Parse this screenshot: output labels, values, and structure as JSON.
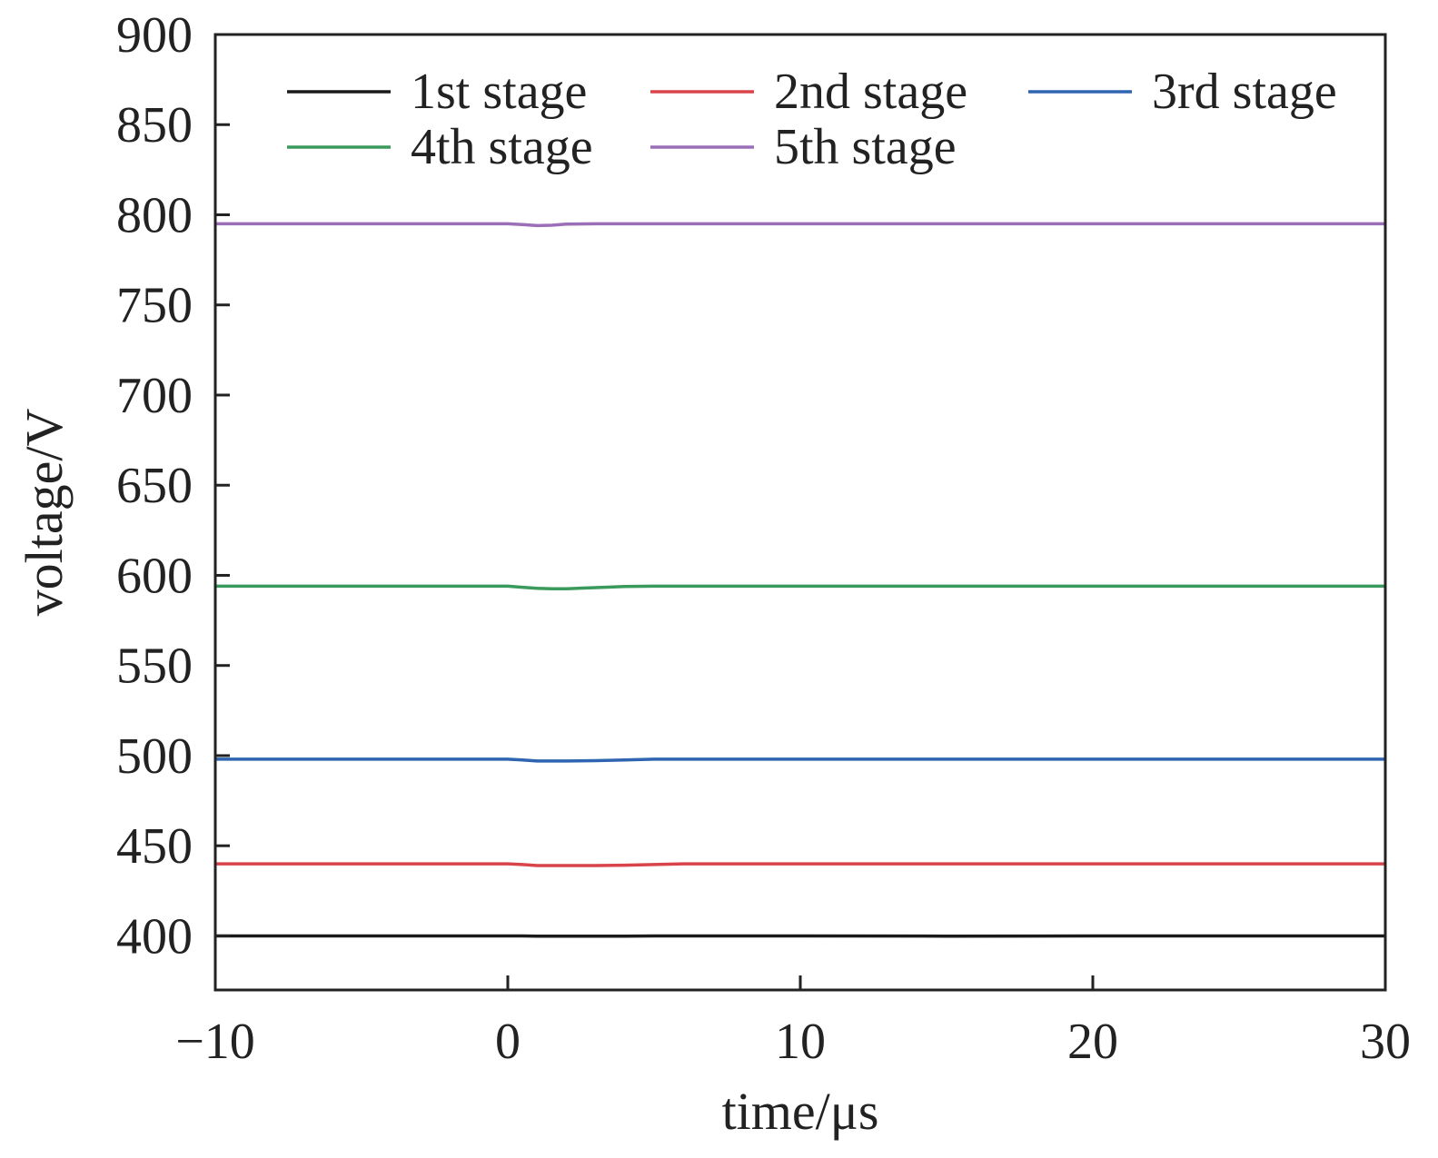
{
  "chart_data": {
    "type": "line",
    "title": "",
    "xlabel": "time/μs",
    "ylabel": "voltage/V",
    "xlim": [
      -10,
      30
    ],
    "ylim": [
      370,
      900
    ],
    "x_ticks": [
      -10,
      0,
      10,
      20,
      30
    ],
    "x_tick_labels": [
      "−10",
      "0",
      "10",
      "20",
      "30"
    ],
    "y_ticks": [
      400,
      450,
      500,
      550,
      600,
      650,
      700,
      750,
      800,
      850,
      900
    ],
    "y_tick_labels": [
      "400",
      "450",
      "500",
      "550",
      "600",
      "650",
      "700",
      "750",
      "800",
      "850",
      "900"
    ],
    "grid": false,
    "legend_position": "top",
    "x": [
      -10,
      -5,
      0,
      0.5,
      1,
      1.5,
      2,
      3,
      4,
      5,
      6,
      8,
      10,
      15,
      20,
      25,
      30
    ],
    "series": [
      {
        "name": "1st stage",
        "color": "#1a1a1a",
        "values": [
          400,
          400,
          400,
          400,
          399.8,
          399.8,
          399.8,
          399.8,
          399.9,
          400,
          400,
          400,
          400,
          399.9,
          400,
          400,
          400
        ]
      },
      {
        "name": "2nd stage",
        "color": "#d9434a",
        "values": [
          440,
          440,
          440,
          439.6,
          439,
          439,
          439,
          439,
          439.2,
          439.6,
          440,
          440,
          440,
          440,
          440,
          440,
          440
        ]
      },
      {
        "name": "3rd stage",
        "color": "#2f64b0",
        "values": [
          498,
          498,
          498,
          497.6,
          497,
          497,
          497,
          497.2,
          497.6,
          498,
          498,
          498,
          498,
          498,
          498,
          498,
          498
        ]
      },
      {
        "name": "4th stage",
        "color": "#3a9a5c",
        "values": [
          594,
          594,
          594,
          593.4,
          592.8,
          592.6,
          592.6,
          593.2,
          593.8,
          594,
          594,
          594,
          594,
          594,
          594,
          594,
          594
        ]
      },
      {
        "name": "5th stage",
        "color": "#9a6fb8",
        "values": [
          795,
          795,
          795,
          794.6,
          794,
          794.2,
          794.8,
          795,
          795,
          795,
          795,
          795,
          795,
          795,
          795,
          795,
          795
        ]
      }
    ]
  }
}
